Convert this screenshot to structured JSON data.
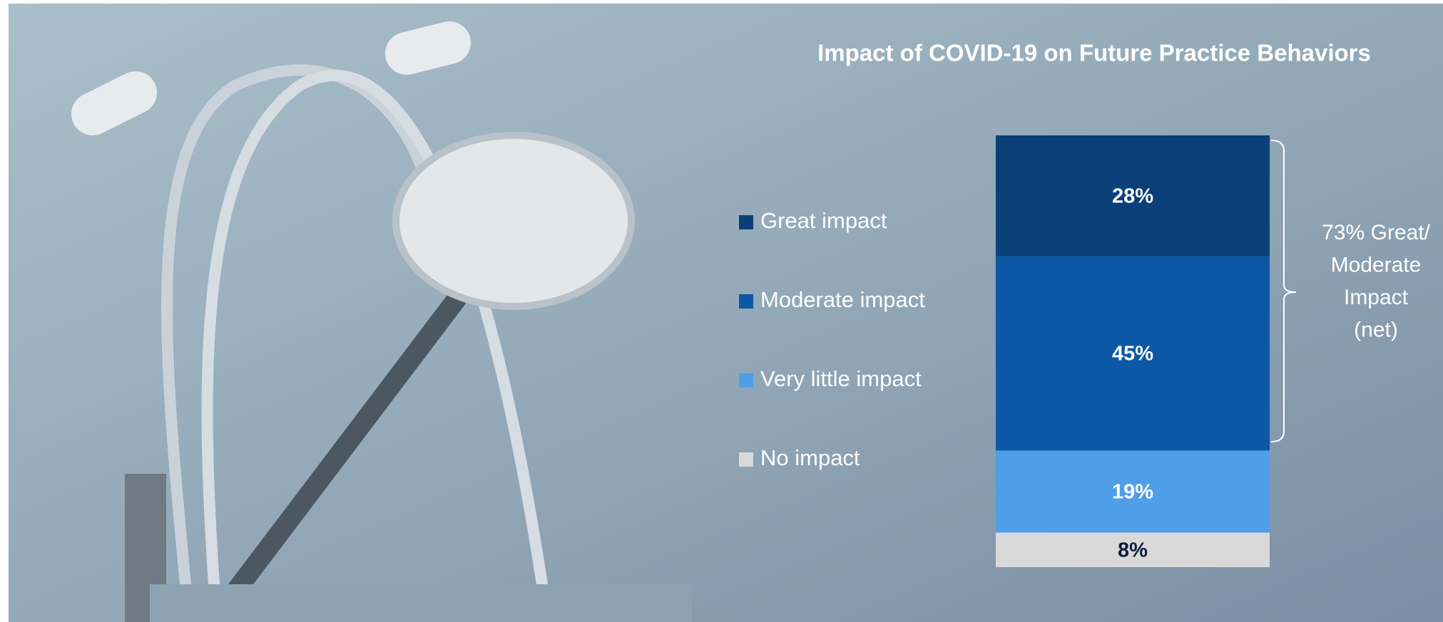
{
  "chart_data": {
    "type": "stacked_bar",
    "title": "Impact of COVID-19 on Future Practice Behaviors",
    "ylim": [
      0,
      100
    ],
    "series": [
      {
        "name": "Great impact",
        "color": "#0b3f7a",
        "values": [
          28
        ],
        "value_labels": [
          "28%"
        ],
        "label_color": "#ffffff"
      },
      {
        "name": "Moderate impact",
        "color": "#0d58a6",
        "values": [
          45
        ],
        "value_labels": [
          "45%"
        ],
        "label_color": "#ffffff"
      },
      {
        "name": "Very little impact",
        "color": "#4f9ee8",
        "values": [
          19
        ],
        "value_labels": [
          "19%"
        ],
        "label_color": "#ffffff"
      },
      {
        "name": "No impact",
        "color": "#d9d9d9",
        "values": [
          8
        ],
        "value_labels": [
          "8%"
        ],
        "label_color": "#0b1f3a"
      }
    ],
    "annotation": [
      "73% Great/",
      "Moderate",
      "Impact",
      "(net)"
    ]
  }
}
